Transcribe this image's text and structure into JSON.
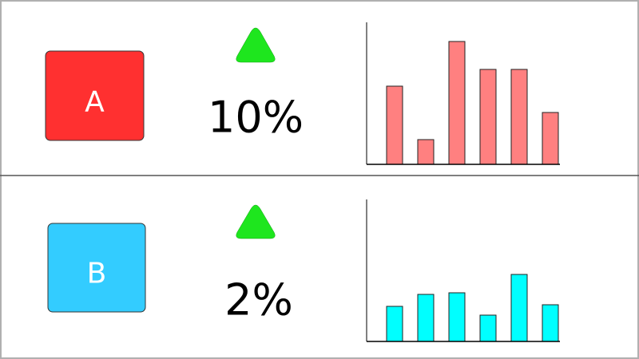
{
  "rows": [
    {
      "badge": "A",
      "change": "10%"
    },
    {
      "badge": "B",
      "change": "2%"
    }
  ],
  "chart_data": [
    {
      "type": "bar",
      "values": [
        98,
        31,
        154,
        119,
        119,
        65
      ],
      "color": "#ff8080",
      "ylim": [
        0,
        178
      ]
    },
    {
      "type": "bar",
      "values": [
        44,
        59,
        61,
        33,
        84,
        46
      ],
      "color": "#00ffff",
      "ylim": [
        0,
        178
      ]
    }
  ]
}
